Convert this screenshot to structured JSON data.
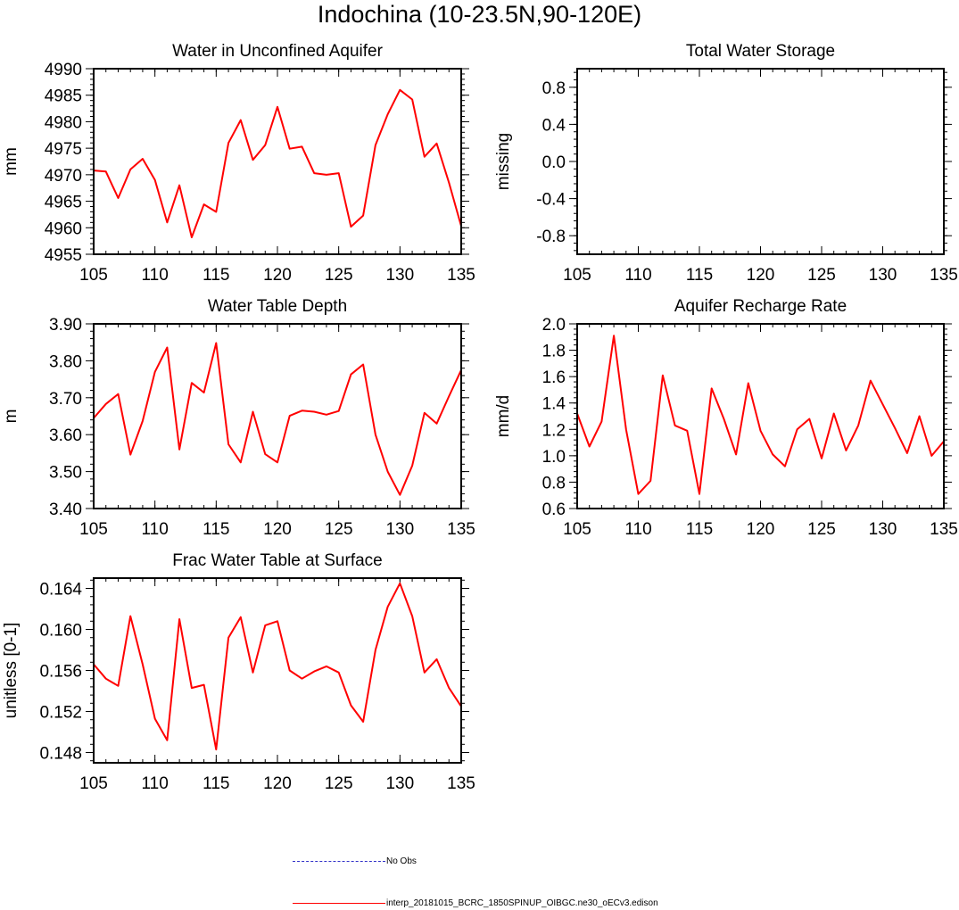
{
  "figure": {
    "title": "Indochina (10-23.5N,90-120E)"
  },
  "chart_data": [
    {
      "type": "line",
      "title": "Water in Unconfined Aquifer",
      "ylabel": "mm",
      "xlabel": "",
      "xlim": [
        105,
        135
      ],
      "ylim": [
        4955,
        4990
      ],
      "xticks": [
        105,
        110,
        115,
        120,
        125,
        130,
        135
      ],
      "yticks": [
        "4955",
        "4960",
        "4965",
        "4970",
        "4975",
        "4980",
        "4985",
        "4990"
      ],
      "series": [
        {
          "name": "interp_20181015_BCRC_1850SPINUP_OIBGC.ne30_oECv3.edison",
          "color": "#ff0000",
          "x": [
            105,
            106,
            107,
            108,
            109,
            110,
            111,
            112,
            113,
            114,
            115,
            116,
            117,
            118,
            119,
            120,
            121,
            122,
            123,
            124,
            125,
            126,
            127,
            128,
            129,
            130,
            131,
            132,
            133,
            134,
            135
          ],
          "y": [
            4970.8,
            4970.6,
            4965.6,
            4971.0,
            4973.0,
            4969.0,
            4961.0,
            4968.0,
            4958.2,
            4964.4,
            4963.0,
            4976.0,
            4980.3,
            4972.8,
            4975.6,
            4982.8,
            4974.9,
            4975.3,
            4970.3,
            4970.0,
            4970.3,
            4960.2,
            4962.3,
            4975.6,
            4981.4,
            4986.0,
            4984.2,
            4973.4,
            4975.9,
            4968.5,
            4960.3
          ]
        }
      ]
    },
    {
      "type": "line",
      "title": "Total Water Storage",
      "ylabel": "missing",
      "xlabel": "",
      "xlim": [
        105,
        135
      ],
      "ylim": [
        -1.0,
        1.0
      ],
      "xticks": [
        105,
        110,
        115,
        120,
        125,
        130,
        135
      ],
      "yticks": [
        "-0.8",
        "-0.4",
        "0.0",
        "0.4",
        "0.8"
      ],
      "series": []
    },
    {
      "type": "line",
      "title": "Water Table Depth",
      "ylabel": "m",
      "xlabel": "",
      "xlim": [
        105,
        135
      ],
      "ylim": [
        3.4,
        3.9
      ],
      "xticks": [
        105,
        110,
        115,
        120,
        125,
        130,
        135
      ],
      "yticks": [
        "3.40",
        "3.50",
        "3.60",
        "3.70",
        "3.80",
        "3.90"
      ],
      "series": [
        {
          "name": "interp_20181015_BCRC_1850SPINUP_OIBGC.ne30_oECv3.edison",
          "color": "#ff0000",
          "x": [
            105,
            106,
            107,
            108,
            109,
            110,
            111,
            112,
            113,
            114,
            115,
            116,
            117,
            118,
            119,
            120,
            121,
            122,
            123,
            124,
            125,
            126,
            127,
            128,
            129,
            130,
            131,
            132,
            133,
            134,
            135
          ],
          "y": [
            3.645,
            3.683,
            3.71,
            3.546,
            3.637,
            3.77,
            3.836,
            3.56,
            3.74,
            3.714,
            3.848,
            3.574,
            3.525,
            3.662,
            3.547,
            3.525,
            3.651,
            3.665,
            3.662,
            3.654,
            3.664,
            3.763,
            3.79,
            3.6,
            3.5,
            3.437,
            3.516,
            3.659,
            3.63,
            3.704,
            3.775
          ]
        }
      ]
    },
    {
      "type": "line",
      "title": "Aquifer Recharge Rate",
      "ylabel": "mm/d",
      "xlabel": "",
      "xlim": [
        105,
        135
      ],
      "ylim": [
        0.6,
        2.0
      ],
      "xticks": [
        105,
        110,
        115,
        120,
        125,
        130,
        135
      ],
      "yticks": [
        "0.6",
        "0.8",
        "1.0",
        "1.2",
        "1.4",
        "1.6",
        "1.8",
        "2.0"
      ],
      "series": [
        {
          "name": "interp_20181015_BCRC_1850SPINUP_OIBGC.ne30_oECv3.edison",
          "color": "#ff0000",
          "x": [
            105,
            106,
            107,
            108,
            109,
            110,
            111,
            112,
            113,
            114,
            115,
            116,
            117,
            118,
            119,
            120,
            121,
            122,
            123,
            124,
            125,
            126,
            127,
            128,
            129,
            130,
            131,
            132,
            133,
            134,
            135
          ],
          "y": [
            1.32,
            1.07,
            1.26,
            1.91,
            1.2,
            0.71,
            0.81,
            1.61,
            1.23,
            1.19,
            0.71,
            1.51,
            1.28,
            1.01,
            1.55,
            1.19,
            1.01,
            0.92,
            1.2,
            1.28,
            0.98,
            1.32,
            1.04,
            1.23,
            1.57,
            1.39,
            1.21,
            1.02,
            1.3,
            1.0,
            1.11
          ]
        }
      ]
    },
    {
      "type": "line",
      "title": "Frac Water Table at Surface",
      "ylabel": "unitless [0-1]",
      "xlabel": "",
      "xlim": [
        105,
        135
      ],
      "ylim": [
        0.147,
        0.165
      ],
      "xticks": [
        105,
        110,
        115,
        120,
        125,
        130,
        135
      ],
      "yticks": [
        "0.148",
        "0.152",
        "0.156",
        "0.160",
        "0.164"
      ],
      "series": [
        {
          "name": "interp_20181015_BCRC_1850SPINUP_OIBGC.ne30_oECv3.edison",
          "color": "#ff0000",
          "x": [
            105,
            106,
            107,
            108,
            109,
            110,
            111,
            112,
            113,
            114,
            115,
            116,
            117,
            118,
            119,
            120,
            121,
            122,
            123,
            124,
            125,
            126,
            127,
            128,
            129,
            130,
            131,
            132,
            133,
            134,
            135
          ],
          "y": [
            0.1566,
            0.1552,
            0.1545,
            0.1613,
            0.1566,
            0.1513,
            0.1492,
            0.161,
            0.1543,
            0.1546,
            0.1483,
            0.1592,
            0.1612,
            0.1558,
            0.1604,
            0.1608,
            0.156,
            0.1552,
            0.1559,
            0.1564,
            0.1558,
            0.1526,
            0.151,
            0.158,
            0.1622,
            0.1645,
            0.1613,
            0.1558,
            0.1571,
            0.1543,
            0.1525
          ]
        }
      ]
    }
  ],
  "legend": {
    "items": [
      {
        "label": "No Obs",
        "color": "#3030c8",
        "style": "dashed"
      },
      {
        "label": "interp_20181015_BCRC_1850SPINUP_OIBGC.ne30_oECv3.edison",
        "color": "#ff0000",
        "style": "solid"
      }
    ]
  }
}
